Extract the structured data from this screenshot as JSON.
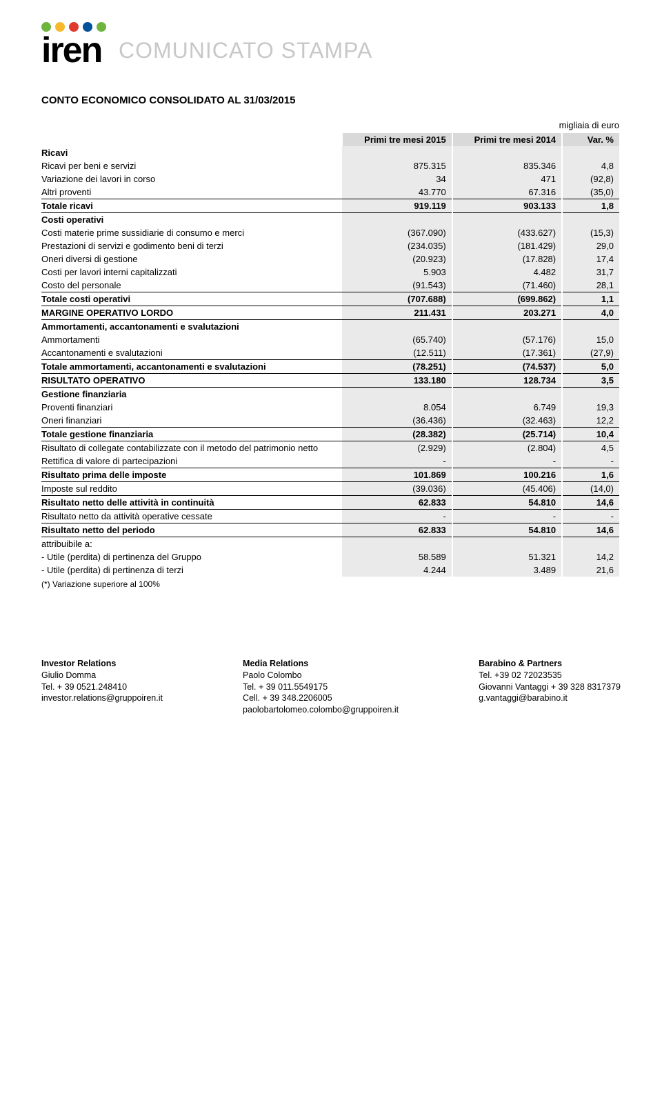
{
  "logo": {
    "dot_colors": [
      "#6fb53d",
      "#f7b92a",
      "#e03a2f",
      "#00529b",
      "#6fb53d"
    ],
    "text": "iren",
    "text_color": "#000000"
  },
  "header_title": "COMUNICATO STAMPA",
  "title": "CONTO ECONOMICO CONSOLIDATO AL 31/03/2015",
  "units_label": "migliaia di euro",
  "columns": {
    "c1": "Primi tre mesi 2015",
    "c2": "Primi tre mesi 2014",
    "c3": "Var. %"
  },
  "rows": [
    {
      "type": "section",
      "label": "Ricavi"
    },
    {
      "label": "Ricavi per beni e servizi",
      "a": "875.315",
      "b": "835.346",
      "c": "4,8"
    },
    {
      "label": "Variazione dei lavori in corso",
      "a": "34",
      "b": "471",
      "c": "(92,8)"
    },
    {
      "label": "Altri proventi",
      "a": "43.770",
      "b": "67.316",
      "c": "(35,0)"
    },
    {
      "type": "total",
      "label": "Totale ricavi",
      "a": "919.119",
      "b": "903.133",
      "c": "1,8"
    },
    {
      "type": "section",
      "label": "Costi operativi"
    },
    {
      "label": "Costi materie prime sussidiarie di consumo e merci",
      "a": "(367.090)",
      "b": "(433.627)",
      "c": "(15,3)"
    },
    {
      "label": "Prestazioni di servizi e godimento beni di terzi",
      "a": "(234.035)",
      "b": "(181.429)",
      "c": "29,0"
    },
    {
      "label": "Oneri diversi di gestione",
      "a": "(20.923)",
      "b": "(17.828)",
      "c": "17,4"
    },
    {
      "label": "Costi per lavori interni capitalizzati",
      "a": "5.903",
      "b": "4.482",
      "c": "31,7"
    },
    {
      "label": "Costo del personale",
      "a": "(91.543)",
      "b": "(71.460)",
      "c": "28,1"
    },
    {
      "type": "total",
      "label": "Totale costi operativi",
      "a": "(707.688)",
      "b": "(699.862)",
      "c": "1,1"
    },
    {
      "type": "total",
      "label": "MARGINE OPERATIVO LORDO",
      "a": "211.431",
      "b": "203.271",
      "c": "4,0"
    },
    {
      "type": "section",
      "label": "Ammortamenti, accantonamenti e svalutazioni"
    },
    {
      "label": "Ammortamenti",
      "a": "(65.740)",
      "b": "(57.176)",
      "c": "15,0"
    },
    {
      "label": "Accantonamenti e svalutazioni",
      "a": "(12.511)",
      "b": "(17.361)",
      "c": "(27,9)"
    },
    {
      "type": "total",
      "label": "Totale ammortamenti, accantonamenti e svalutazioni",
      "a": "(78.251)",
      "b": "(74.537)",
      "c": "5,0"
    },
    {
      "type": "total",
      "label": "RISULTATO OPERATIVO",
      "a": "133.180",
      "b": "128.734",
      "c": "3,5"
    },
    {
      "type": "section",
      "label": "Gestione finanziaria"
    },
    {
      "label": "Proventi finanziari",
      "a": "8.054",
      "b": "6.749",
      "c": "19,3"
    },
    {
      "label": "Oneri finanziari",
      "a": "(36.436)",
      "b": "(32.463)",
      "c": "12,2"
    },
    {
      "type": "total",
      "label": "Totale gestione finanziaria",
      "a": "(28.382)",
      "b": "(25.714)",
      "c": "10,4"
    },
    {
      "label": "Risultato di collegate contabilizzate con il metodo del patrimonio netto",
      "a": "(2.929)",
      "b": "(2.804)",
      "c": "4,5"
    },
    {
      "label": "Rettifica di valore di partecipazioni",
      "a": "-",
      "b": "-",
      "c": "-"
    },
    {
      "type": "total",
      "label": "Risultato prima delle imposte",
      "a": "101.869",
      "b": "100.216",
      "c": "1,6"
    },
    {
      "label": "Imposte sul reddito",
      "a": "(39.036)",
      "b": "(45.406)",
      "c": "(14,0)"
    },
    {
      "type": "total",
      "label": "Risultato netto delle attività in continuità",
      "a": "62.833",
      "b": "54.810",
      "c": "14,6"
    },
    {
      "label": "Risultato netto da attività operative cessate",
      "a": "-",
      "b": "-",
      "c": "-"
    },
    {
      "type": "total",
      "label": "Risultato netto del periodo",
      "a": "62.833",
      "b": "54.810",
      "c": "14,6"
    },
    {
      "label": "attribuibile a:",
      "a": "",
      "b": "",
      "c": ""
    },
    {
      "label": "- Utile (perdita) di pertinenza del Gruppo",
      "a": "58.589",
      "b": "51.321",
      "c": "14,2"
    },
    {
      "label": "- Utile (perdita) di pertinenza di terzi",
      "a": "4.244",
      "b": "3.489",
      "c": "21,6"
    }
  ],
  "footnote": "(*) Variazione superiore al 100%",
  "footer": {
    "col1": {
      "title": "Investor Relations",
      "name": "Giulio Domma",
      "tel": "Tel. + 39 0521.248410",
      "email": "investor.relations@gruppoiren.it"
    },
    "col2": {
      "title": "Media Relations",
      "name": "Paolo Colombo",
      "tel": "Tel. + 39 011.5549175",
      "cell": "Cell. + 39 348.2206005",
      "email": "paolobartolomeo.colombo@gruppoiren.it"
    },
    "col3": {
      "title": "Barabino & Partners",
      "tel1": "Tel. +39 02 72023535",
      "name": "Giovanni Vantaggi + 39 328 8317379",
      "email": "g.vantaggi@barabino.it"
    }
  }
}
